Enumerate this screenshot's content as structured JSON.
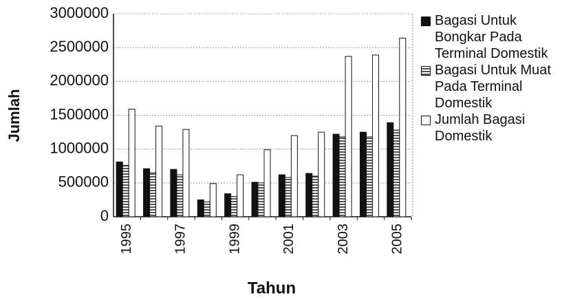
{
  "chart_data": {
    "type": "bar",
    "y_label": "Jumlah",
    "x_label": "Tahun",
    "categories": [
      "1995",
      null,
      "1997",
      null,
      "1999",
      null,
      "2001",
      null,
      "2003",
      null,
      "2005"
    ],
    "series": [
      {
        "name": "Bagasi Untuk Bongkar Pada Terminal Domestik",
        "color": "#111111",
        "values": [
          810000,
          710000,
          700000,
          250000,
          340000,
          510000,
          620000,
          640000,
          1220000,
          1250000,
          1390000
        ]
      },
      {
        "name": "Bagasi Untuk Muat Pada Terminal Domestik",
        "color": "#555555",
        "values": [
          760000,
          650000,
          620000,
          220000,
          300000,
          500000,
          580000,
          600000,
          1180000,
          1180000,
          1280000
        ]
      },
      {
        "name": "Jumlah Bagasi Domestik",
        "color": "#ffffff",
        "values": [
          1590000,
          1340000,
          1290000,
          490000,
          620000,
          990000,
          1200000,
          1250000,
          2370000,
          2390000,
          2640000
        ]
      }
    ],
    "ylim": [
      0,
      3000000
    ],
    "yticks": [
      0,
      500000,
      1000000,
      1500000,
      2000000,
      2500000,
      3000000
    ],
    "grid": true,
    "legend": "right"
  }
}
